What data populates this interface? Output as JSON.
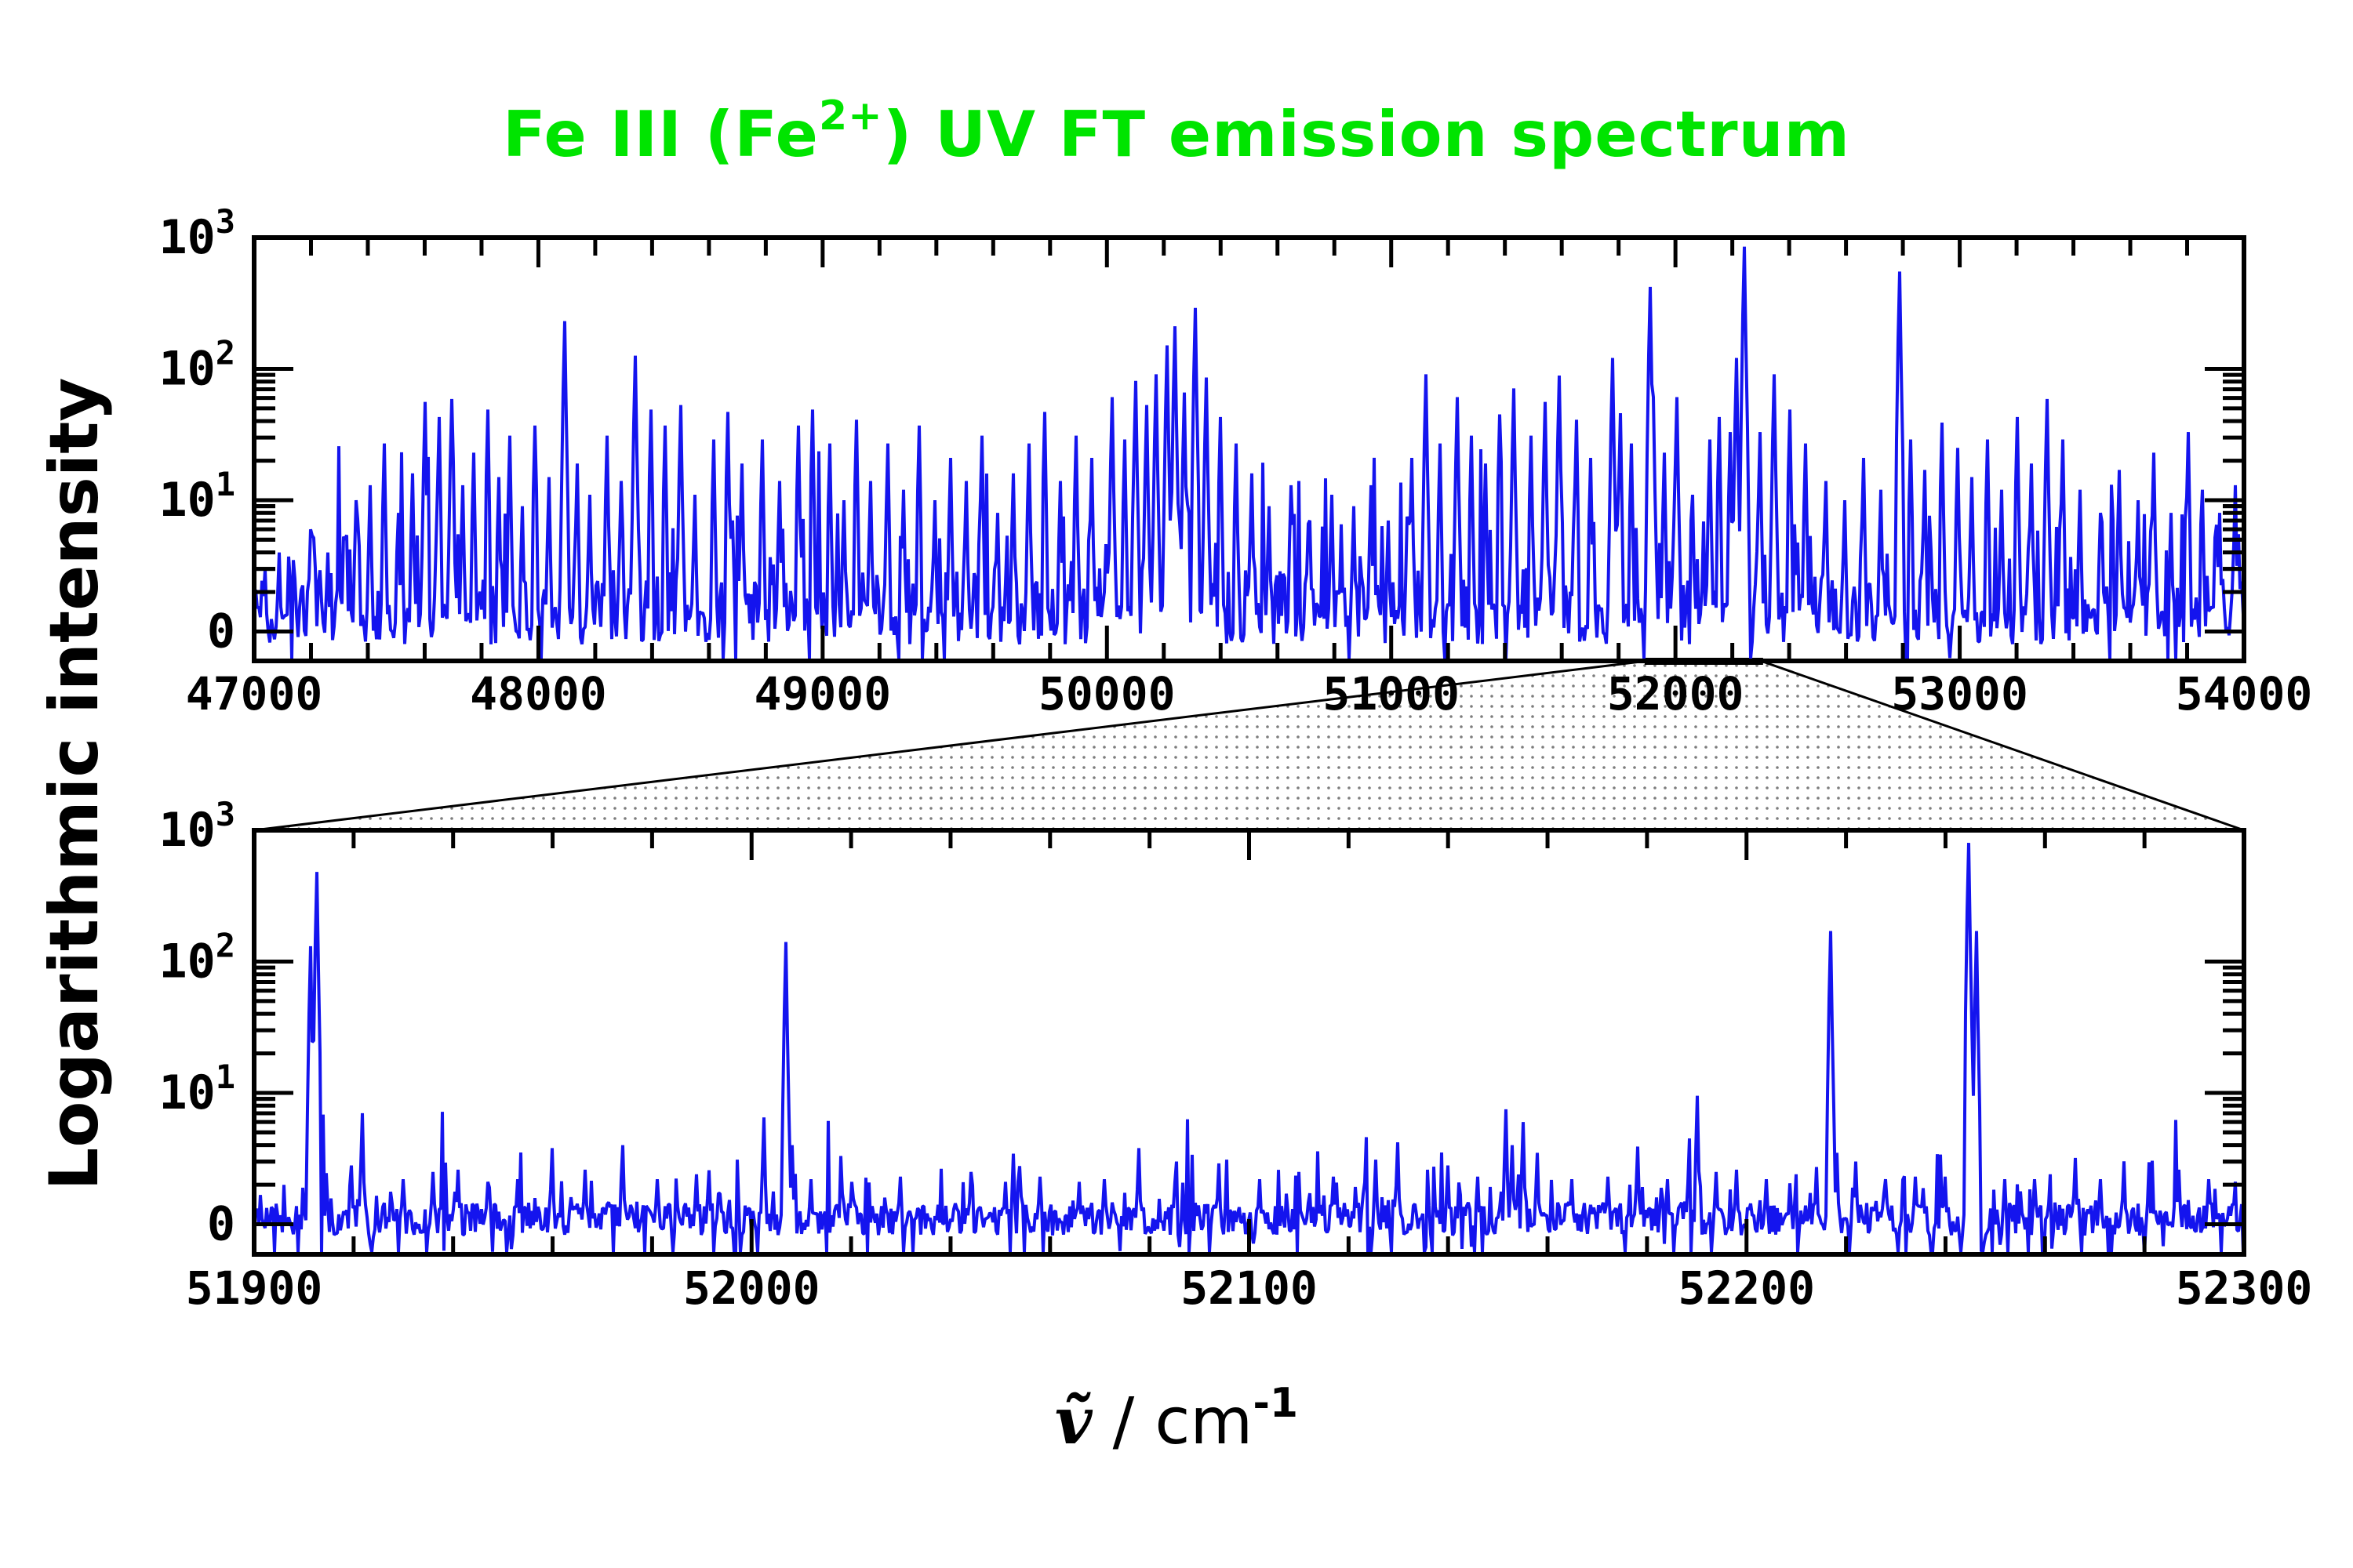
{
  "title": {
    "prefix": "Fe III (Fe",
    "sup": "2+",
    "suffix": ") UV FT emission spectrum",
    "color": "#00e400"
  },
  "labels": {
    "y_axis": "Logarithmic intensity",
    "x_symbol": "ṽ",
    "x_separator": " / cm",
    "x_sup": "-1"
  },
  "colors": {
    "spectrum": "#1414ee",
    "axis": "#000000",
    "cone_dot": "#7d7d7d"
  },
  "chart_data": [
    {
      "id": "full-uv-spectrum",
      "type": "line",
      "title": "Fe III (Fe2+) UV FT emission spectrum — full range",
      "xlabel": "wavenumber / cm-1",
      "ylabel": "Logarithmic intensity",
      "x_range": [
        47000,
        54000
      ],
      "x_major_tick": 1000,
      "x_minor_tick": 200,
      "x_tick_labels": [
        "47000",
        "48000",
        "49000",
        "50000",
        "51000",
        "52000",
        "53000",
        "54000"
      ],
      "y_scale": "symlog",
      "y_ticks": [
        {
          "base": "10",
          "exp": "3"
        },
        {
          "base": "10",
          "exp": "2"
        },
        {
          "base": "10",
          "exp": "1"
        },
        {
          "base": "0",
          "exp": ""
        }
      ],
      "ylim": [
        0,
        1000
      ],
      "legend": "none",
      "grid": false,
      "noise": {
        "seed": 11,
        "band": 0.45,
        "neg": 0.28,
        "p_small": 0.38,
        "small_max": 1.6,
        "p_med": 0.1,
        "med_max": 6,
        "p_big": 0.018,
        "big_max": 22,
        "p_dip": 0.03,
        "dip_max": 1.6
      },
      "peaks": [
        [
          47040,
          2
        ],
        [
          47090,
          3
        ],
        [
          47140,
          2.5
        ],
        [
          47200,
          5
        ],
        [
          47260,
          3
        ],
        [
          47320,
          4
        ],
        [
          47360,
          9
        ],
        [
          47410,
          12
        ],
        [
          47460,
          26
        ],
        [
          47510,
          7
        ],
        [
          47555,
          15
        ],
        [
          47600,
          55
        ],
        [
          47650,
          42
        ],
        [
          47695,
          58
        ],
        [
          47735,
          12
        ],
        [
          47775,
          22
        ],
        [
          47820,
          48
        ],
        [
          47860,
          14
        ],
        [
          47900,
          30
        ],
        [
          47945,
          8
        ],
        [
          47990,
          36
        ],
        [
          48035,
          14
        ],
        [
          48090,
          230
        ],
        [
          48135,
          18
        ],
        [
          48180,
          10
        ],
        [
          48240,
          30
        ],
        [
          48290,
          13
        ],
        [
          48340,
          125
        ],
        [
          48395,
          48
        ],
        [
          48445,
          36
        ],
        [
          48500,
          52
        ],
        [
          48550,
          10
        ],
        [
          48615,
          28
        ],
        [
          48665,
          46
        ],
        [
          48715,
          18
        ],
        [
          48790,
          28
        ],
        [
          48850,
          13
        ],
        [
          48915,
          36
        ],
        [
          48965,
          48
        ],
        [
          49025,
          26
        ],
        [
          49075,
          9
        ],
        [
          49120,
          40
        ],
        [
          49170,
          13
        ],
        [
          49230,
          26
        ],
        [
          49285,
          11
        ],
        [
          49340,
          36
        ],
        [
          49395,
          9
        ],
        [
          49450,
          20
        ],
        [
          49505,
          13
        ],
        [
          49560,
          30
        ],
        [
          49615,
          7
        ],
        [
          49670,
          15
        ],
        [
          49725,
          26
        ],
        [
          49780,
          46
        ],
        [
          49835,
          13
        ],
        [
          49890,
          30
        ],
        [
          49945,
          20
        ],
        [
          50020,
          60
        ],
        [
          50060,
          28
        ],
        [
          50100,
          80
        ],
        [
          50140,
          52
        ],
        [
          50175,
          90
        ],
        [
          50210,
          150
        ],
        [
          50240,
          210
        ],
        [
          50270,
          65
        ],
        [
          50310,
          290
        ],
        [
          50350,
          85
        ],
        [
          50400,
          42
        ],
        [
          50455,
          26
        ],
        [
          50510,
          15
        ],
        [
          50570,
          8
        ],
        [
          50650,
          12
        ],
        [
          50715,
          6
        ],
        [
          50790,
          10
        ],
        [
          50870,
          8
        ],
        [
          50930,
          12
        ],
        [
          50990,
          6
        ],
        [
          51070,
          20
        ],
        [
          51120,
          90
        ],
        [
          51170,
          26
        ],
        [
          51230,
          60
        ],
        [
          51280,
          30
        ],
        [
          51330,
          18
        ],
        [
          51380,
          44
        ],
        [
          51430,
          70
        ],
        [
          51490,
          30
        ],
        [
          51540,
          55
        ],
        [
          51590,
          88
        ],
        [
          51650,
          40
        ],
        [
          51700,
          20
        ],
        [
          51780,
          120
        ],
        [
          51805,
          45
        ],
        [
          51845,
          26
        ],
        [
          51912,
          420
        ],
        [
          51922,
          60
        ],
        [
          51960,
          22
        ],
        [
          52007,
          60
        ],
        [
          52060,
          10
        ],
        [
          52120,
          28
        ],
        [
          52155,
          42
        ],
        [
          52190,
          32
        ],
        [
          52217,
          120
        ],
        [
          52245,
          850
        ],
        [
          52250,
          90
        ],
        [
          52295,
          32
        ],
        [
          52345,
          90
        ],
        [
          52400,
          48
        ],
        [
          52460,
          26
        ],
        [
          52530,
          13
        ],
        [
          52595,
          9
        ],
        [
          52660,
          20
        ],
        [
          52725,
          11
        ],
        [
          52786,
          550
        ],
        [
          52830,
          28
        ],
        [
          52875,
          16
        ],
        [
          52935,
          38
        ],
        [
          52995,
          24
        ],
        [
          53045,
          14
        ],
        [
          53095,
          28
        ],
        [
          53145,
          11
        ],
        [
          53205,
          42
        ],
        [
          53255,
          18
        ],
        [
          53310,
          58
        ],
        [
          53365,
          28
        ],
        [
          53425,
          11
        ],
        [
          53495,
          7
        ],
        [
          53560,
          16
        ],
        [
          53625,
          9
        ],
        [
          53685,
          22
        ],
        [
          53745,
          7
        ],
        [
          53805,
          32
        ],
        [
          53855,
          11
        ],
        [
          53915,
          7
        ],
        [
          53970,
          12
        ]
      ]
    },
    {
      "id": "zoomed-spectrum-51900-52300",
      "type": "line",
      "title": "Zoomed region 51900-52300 cm-1",
      "xlabel": "wavenumber / cm-1",
      "ylabel": "Logarithmic intensity",
      "x_range": [
        51900,
        52300
      ],
      "x_major_tick": 100,
      "x_minor_tick": 20,
      "x_tick_labels": [
        "51900",
        "52000",
        "52100",
        "52200",
        "52300"
      ],
      "y_scale": "symlog",
      "y_ticks": [
        {
          "base": "10",
          "exp": "3"
        },
        {
          "base": "10",
          "exp": "2"
        },
        {
          "base": "10",
          "exp": "1"
        },
        {
          "base": "0",
          "exp": ""
        }
      ],
      "ylim": [
        0,
        1000
      ],
      "legend": "none",
      "grid": false,
      "noise": {
        "seed": 5,
        "band": 0.34,
        "neg": 0.32,
        "p_small": 0.12,
        "small_max": 0.9,
        "p_med": 0.03,
        "med_max": 1.6,
        "p_big": 0.004,
        "big_max": 2.4,
        "p_dip": 0.05,
        "dip_max": 1.3
      },
      "peaks": [
        [
          51911.2,
          130
        ],
        [
          51912.5,
          480
        ],
        [
          51913.6,
          -2
        ],
        [
          51919.5,
          1.8
        ],
        [
          51921.7,
          6
        ],
        [
          51923.5,
          -1.4
        ],
        [
          51930,
          1.2
        ],
        [
          51936,
          1.5
        ],
        [
          51941,
          1.6
        ],
        [
          51947,
          1.1
        ],
        [
          51953,
          1.2
        ],
        [
          51960,
          2.8
        ],
        [
          51966.5,
          1.6
        ],
        [
          51974,
          3
        ],
        [
          51981,
          1.2
        ],
        [
          51989,
          1.4
        ],
        [
          51997,
          2.1
        ],
        [
          52002.5,
          5.5
        ],
        [
          52006.8,
          140
        ],
        [
          52008.2,
          3
        ],
        [
          52012,
          1.2
        ],
        [
          52020,
          1.1
        ],
        [
          52030,
          1.3
        ],
        [
          52044,
          1.5
        ],
        [
          52051,
          1.1
        ],
        [
          52058,
          1.3
        ],
        [
          52066,
          1.1
        ],
        [
          52071,
          1.2
        ],
        [
          52078,
          2.8
        ],
        [
          52085,
          1.1
        ],
        [
          52094,
          1.9
        ],
        [
          52102,
          1.2
        ],
        [
          52110,
          1.5
        ],
        [
          52117,
          1.3
        ],
        [
          52123.5,
          3.6
        ],
        [
          52125.5,
          2.1
        ],
        [
          52130,
          3.2
        ],
        [
          52136,
          1.6
        ],
        [
          52140,
          1.8
        ],
        [
          52146,
          1.3
        ],
        [
          52151.5,
          6.5
        ],
        [
          52153,
          3
        ],
        [
          52155,
          5
        ],
        [
          52158,
          2.5
        ],
        [
          52165,
          1.2
        ],
        [
          52172,
          1.3
        ],
        [
          52178,
          2.9
        ],
        [
          52184,
          1.2
        ],
        [
          52188.5,
          3.5
        ],
        [
          52190,
          8.5
        ],
        [
          52194,
          1.5
        ],
        [
          52198,
          1.6
        ],
        [
          52204,
          1.2
        ],
        [
          52210,
          1.4
        ],
        [
          52216.8,
          170
        ],
        [
          52218.2,
          2.5
        ],
        [
          52222,
          2
        ],
        [
          52228,
          1.2
        ],
        [
          52234,
          1.3
        ],
        [
          52240,
          1.3
        ],
        [
          52244.8,
          800
        ],
        [
          52246.3,
          170
        ],
        [
          52247.6,
          -2
        ],
        [
          52252,
          1.2
        ],
        [
          52258,
          1.2
        ],
        [
          52261,
          1.4
        ],
        [
          52266,
          2.2
        ],
        [
          52271,
          1.2
        ],
        [
          52276,
          1.8
        ],
        [
          52281,
          1.2
        ],
        [
          52287,
          1.6
        ],
        [
          52293,
          1.2
        ]
      ]
    }
  ],
  "cone": {
    "top_left_wavenumber": 51900,
    "top_right_wavenumber": 52300,
    "style": "dotted-fill"
  }
}
